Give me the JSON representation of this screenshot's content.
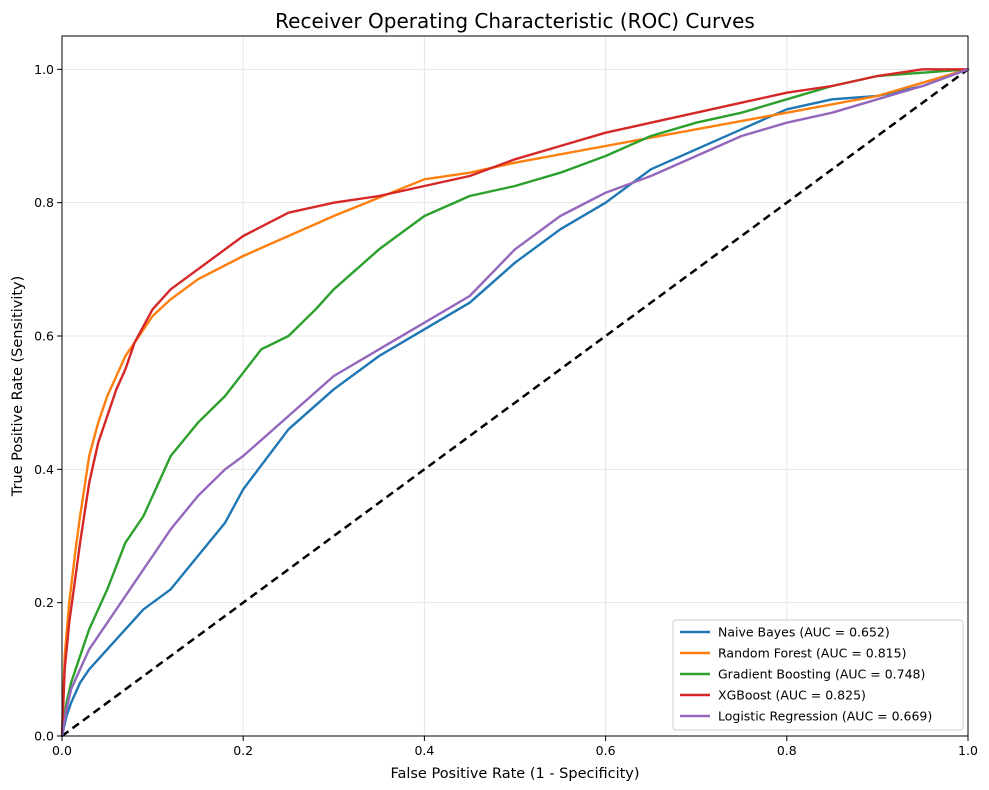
{
  "chart_data": {
    "type": "line",
    "title": "Receiver Operating Characteristic (ROC) Curves",
    "xlabel": "False Positive Rate (1 - Specificity)",
    "ylabel": "True Positive Rate (Sensitivity)",
    "xlim": [
      0,
      1
    ],
    "ylim": [
      0,
      1.05
    ],
    "xticks": [
      "0.0",
      "0.2",
      "0.4",
      "0.6",
      "0.8",
      "1.0"
    ],
    "yticks": [
      "0.0",
      "0.2",
      "0.4",
      "0.6",
      "0.8",
      "1.0"
    ],
    "grid": true,
    "legend_position": "lower-right",
    "reference_line": {
      "x": [
        0,
        1
      ],
      "y": [
        0,
        1
      ],
      "style": "dashed",
      "color": "#000000"
    },
    "series": [
      {
        "name": "Naive Bayes (AUC = 0.652)",
        "color": "#1f77b4",
        "x": [
          0,
          0.005,
          0.01,
          0.02,
          0.03,
          0.05,
          0.07,
          0.09,
          0.1,
          0.12,
          0.15,
          0.18,
          0.2,
          0.25,
          0.3,
          0.35,
          0.4,
          0.45,
          0.5,
          0.55,
          0.6,
          0.65,
          0.7,
          0.75,
          0.8,
          0.85,
          0.9,
          0.95,
          1.0
        ],
        "y": [
          0,
          0.03,
          0.05,
          0.08,
          0.1,
          0.13,
          0.16,
          0.19,
          0.2,
          0.22,
          0.27,
          0.32,
          0.37,
          0.46,
          0.52,
          0.57,
          0.61,
          0.65,
          0.71,
          0.76,
          0.8,
          0.85,
          0.88,
          0.91,
          0.94,
          0.955,
          0.96,
          0.975,
          1.0
        ]
      },
      {
        "name": "Random Forest (AUC = 0.815)",
        "color": "#ff7f0e",
        "x": [
          0,
          0.003,
          0.008,
          0.015,
          0.02,
          0.03,
          0.04,
          0.05,
          0.06,
          0.07,
          0.08,
          0.1,
          0.12,
          0.15,
          0.2,
          0.3,
          0.4,
          0.45,
          0.5,
          0.6,
          0.7,
          0.8,
          0.9,
          1.0
        ],
        "y": [
          0,
          0.12,
          0.2,
          0.28,
          0.33,
          0.42,
          0.47,
          0.51,
          0.54,
          0.57,
          0.59,
          0.63,
          0.655,
          0.685,
          0.72,
          0.78,
          0.835,
          0.845,
          0.86,
          0.885,
          0.91,
          0.935,
          0.96,
          1.0
        ]
      },
      {
        "name": "Gradient Boosting (AUC = 0.748)",
        "color": "#2ca02c",
        "x": [
          0,
          0.005,
          0.01,
          0.02,
          0.03,
          0.05,
          0.07,
          0.09,
          0.1,
          0.12,
          0.15,
          0.18,
          0.2,
          0.22,
          0.25,
          0.28,
          0.3,
          0.35,
          0.4,
          0.45,
          0.5,
          0.55,
          0.6,
          0.65,
          0.7,
          0.75,
          0.8,
          0.85,
          0.9,
          0.95,
          1.0
        ],
        "y": [
          0,
          0.05,
          0.08,
          0.12,
          0.16,
          0.22,
          0.29,
          0.33,
          0.36,
          0.42,
          0.47,
          0.51,
          0.545,
          0.58,
          0.6,
          0.64,
          0.67,
          0.73,
          0.78,
          0.81,
          0.825,
          0.845,
          0.87,
          0.9,
          0.92,
          0.935,
          0.955,
          0.975,
          0.99,
          0.995,
          1.0
        ]
      },
      {
        "name": "XGBoost (AUC = 0.825)",
        "color": "#d62728",
        "x": [
          0,
          0.003,
          0.008,
          0.015,
          0.02,
          0.03,
          0.04,
          0.05,
          0.06,
          0.07,
          0.08,
          0.1,
          0.12,
          0.15,
          0.18,
          0.2,
          0.25,
          0.3,
          0.35,
          0.4,
          0.45,
          0.5,
          0.55,
          0.6,
          0.65,
          0.7,
          0.75,
          0.8,
          0.85,
          0.9,
          0.95,
          1.0
        ],
        "y": [
          0,
          0.1,
          0.17,
          0.24,
          0.29,
          0.38,
          0.44,
          0.48,
          0.52,
          0.55,
          0.59,
          0.64,
          0.67,
          0.7,
          0.73,
          0.75,
          0.785,
          0.8,
          0.81,
          0.825,
          0.84,
          0.865,
          0.885,
          0.905,
          0.92,
          0.935,
          0.95,
          0.965,
          0.975,
          0.99,
          1.0,
          1.0
        ]
      },
      {
        "name": "Logistic Regression (AUC = 0.669)",
        "color": "#9467bd",
        "x": [
          0,
          0.005,
          0.01,
          0.02,
          0.03,
          0.05,
          0.07,
          0.09,
          0.1,
          0.12,
          0.15,
          0.18,
          0.2,
          0.25,
          0.3,
          0.35,
          0.4,
          0.45,
          0.5,
          0.55,
          0.6,
          0.65,
          0.7,
          0.75,
          0.8,
          0.85,
          0.9,
          0.95,
          1.0
        ],
        "y": [
          0,
          0.04,
          0.07,
          0.1,
          0.13,
          0.17,
          0.21,
          0.25,
          0.27,
          0.31,
          0.36,
          0.4,
          0.42,
          0.48,
          0.54,
          0.58,
          0.62,
          0.66,
          0.73,
          0.78,
          0.815,
          0.84,
          0.87,
          0.9,
          0.92,
          0.935,
          0.955,
          0.975,
          1.0
        ]
      }
    ]
  }
}
